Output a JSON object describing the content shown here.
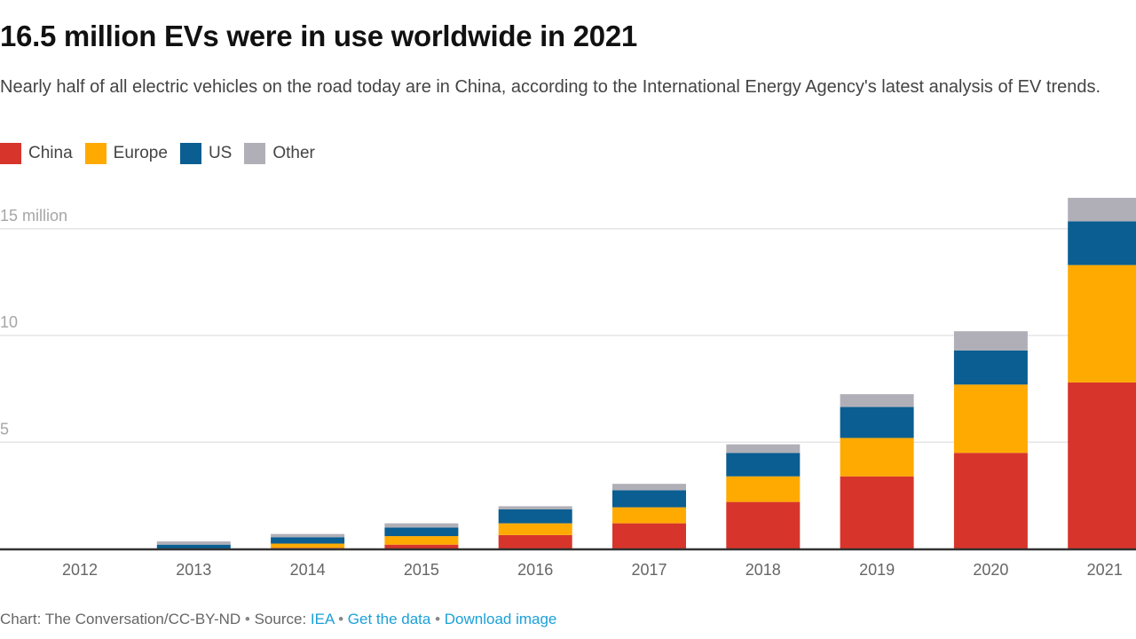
{
  "header": {
    "title": "16.5 million EVs were in use worldwide in 2021",
    "subtitle": "Nearly half of all electric vehicles on the road today are in China, according to the International Energy Agency's latest analysis of EV trends."
  },
  "footer": {
    "credit": "Chart: The Conversation/CC-BY-ND",
    "separator": " • ",
    "source_label": "Source: ",
    "source_link": "IEA",
    "get_data_link": "Get the data",
    "download_link": "Download image"
  },
  "chart_data": {
    "type": "bar",
    "stacked": true,
    "title": "16.5 million EVs were in use worldwide in 2021",
    "xlabel": "",
    "ylabel": "",
    "ylim": [
      0,
      16.5
    ],
    "yticks": [
      {
        "value": 5,
        "label": "5"
      },
      {
        "value": 10,
        "label": "10"
      },
      {
        "value": 15,
        "label": "15 million"
      }
    ],
    "grid": true,
    "legend_position": "top-left",
    "categories": [
      "2012",
      "2013",
      "2014",
      "2015",
      "2016",
      "2017",
      "2018",
      "2019",
      "2020",
      "2021"
    ],
    "series": [
      {
        "name": "China",
        "color": "#D7352B",
        "values": [
          0.0,
          0.0,
          0.05,
          0.2,
          0.65,
          1.2,
          2.2,
          3.4,
          4.5,
          7.8
        ]
      },
      {
        "name": "Europe",
        "color": "#FFAA00",
        "values": [
          0.0,
          0.0,
          0.2,
          0.4,
          0.55,
          0.75,
          1.2,
          1.8,
          3.2,
          5.5
        ]
      },
      {
        "name": "US",
        "color": "#0A5E91",
        "values": [
          0.02,
          0.2,
          0.3,
          0.4,
          0.65,
          0.8,
          1.1,
          1.45,
          1.6,
          2.05
        ]
      },
      {
        "name": "Other",
        "color": "#B0AFB7",
        "values": [
          0.0,
          0.15,
          0.15,
          0.2,
          0.15,
          0.3,
          0.4,
          0.6,
          0.9,
          1.1
        ]
      }
    ]
  }
}
